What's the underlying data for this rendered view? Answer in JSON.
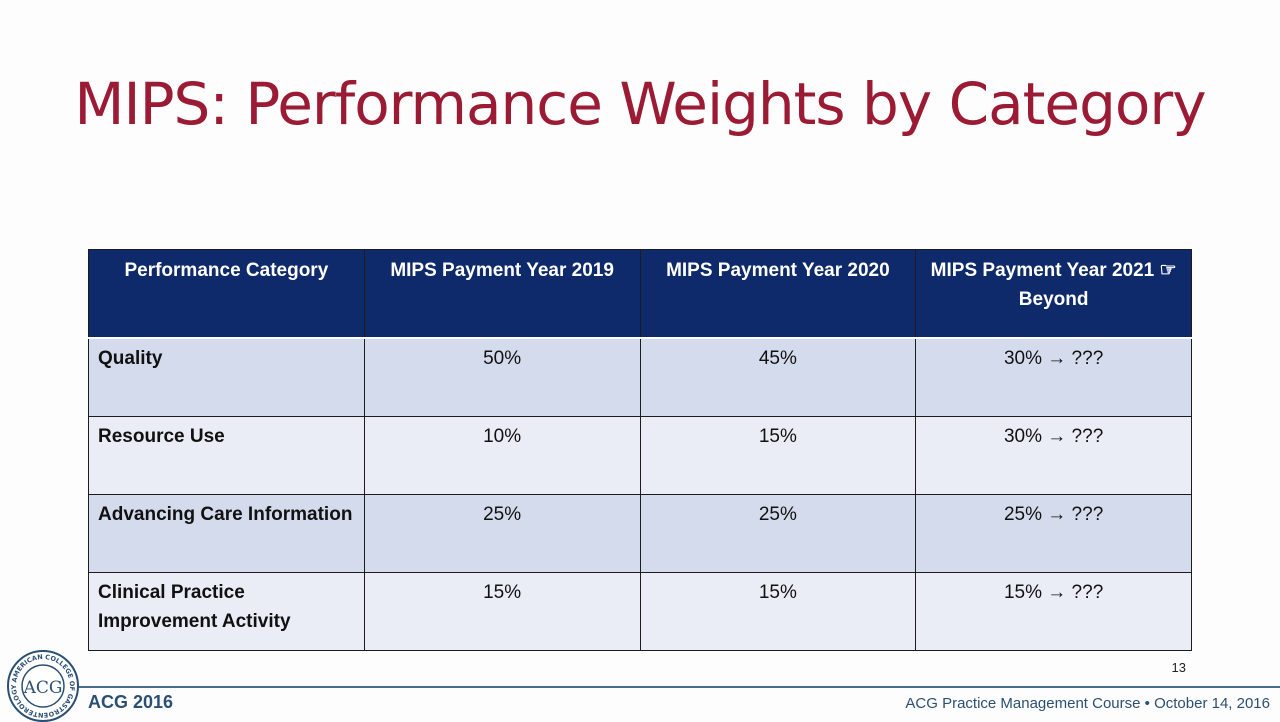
{
  "slide": {
    "title": "MIPS: Performance Weights by Category",
    "page_number": "13"
  },
  "table": {
    "headers": [
      "Performance Category",
      "MIPS Payment Year 2019",
      "MIPS Payment Year 2020",
      "MIPS Payment Year 2021 ☞ Beyond"
    ],
    "rows": [
      {
        "category": "Quality",
        "values": [
          "50%",
          "45%",
          "30% → ???"
        ]
      },
      {
        "category": "Resource Use",
        "values": [
          "10%",
          "15%",
          "30% → ???"
        ]
      },
      {
        "category": "Advancing Care Information",
        "values": [
          "25%",
          "25%",
          "25% → ???"
        ]
      },
      {
        "category": "Clinical Practice Improvement Activity",
        "values": [
          "15%",
          "15%",
          "15% → ???"
        ]
      }
    ]
  },
  "footer": {
    "org": "ACG 2016",
    "course": "ACG Practice Management Course • October 14, 2016",
    "logo_text": "ACG",
    "logo_ring_text": "AMERICAN COLLEGE OF GASTROENTEROLOGY"
  },
  "colors": {
    "title": "#9b1b35",
    "header_bg": "#0f2a6b",
    "row_a": "#d4dbec",
    "row_b": "#eaedf5",
    "footer_text": "#2b4f74"
  }
}
